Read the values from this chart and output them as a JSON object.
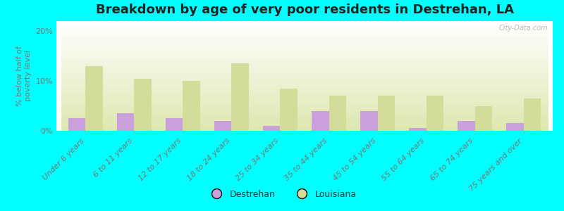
{
  "title": "Breakdown by age of very poor residents in Destrehan, LA",
  "categories": [
    "Under 6 years",
    "6 to 11 years",
    "12 to 17 years",
    "18 to 24 years",
    "25 to 34 years",
    "35 to 44 years",
    "45 to 54 years",
    "55 to 64 years",
    "65 to 74 years",
    "75 years and over"
  ],
  "destrehan": [
    2.5,
    3.5,
    2.5,
    2.0,
    1.0,
    4.0,
    4.0,
    0.5,
    2.0,
    1.5
  ],
  "louisiana": [
    13.0,
    10.5,
    10.0,
    13.5,
    8.5,
    7.0,
    7.0,
    7.0,
    5.0,
    6.5
  ],
  "destrehan_color": "#c9a0dc",
  "louisiana_color": "#d4dc9a",
  "background_outer": "#00ffff",
  "gradient_top": "#ffffff",
  "gradient_bot": "#dde8b0",
  "ylabel": "% below half of\npoverty level",
  "ylim": [
    0,
    22
  ],
  "yticks": [
    0,
    10,
    20
  ],
  "ytick_labels": [
    "0%",
    "10%",
    "20%"
  ],
  "title_fontsize": 13,
  "tick_fontsize": 8,
  "ylabel_fontsize": 8,
  "legend_labels": [
    "Destrehan",
    "Louisiana"
  ],
  "bar_width": 0.35,
  "watermark": "City-Data.com"
}
